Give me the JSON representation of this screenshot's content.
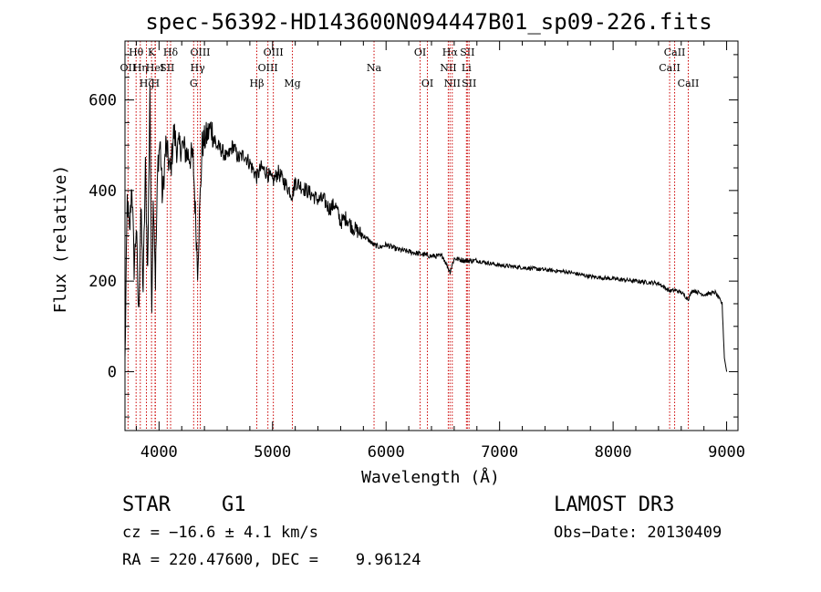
{
  "chart_data": {
    "type": "line",
    "title": "spec-56392-HD143600N094447B01_sp09-226.fits",
    "xlabel": "Wavelength (Å)",
    "ylabel": "Flux (relative)",
    "xlim": [
      3700,
      9100
    ],
    "ylim": [
      -130,
      730
    ],
    "xticks": [
      4000,
      5000,
      6000,
      7000,
      8000,
      9000
    ],
    "yticks": [
      0,
      200,
      400,
      600
    ],
    "series": [
      {
        "name": "flux",
        "x": [
          3700,
          3720,
          3740,
          3760,
          3780,
          3800,
          3820,
          3840,
          3860,
          3880,
          3900,
          3920,
          3934,
          3950,
          3968,
          3990,
          4010,
          4030,
          4060,
          4101,
          4130,
          4160,
          4200,
          4250,
          4300,
          4340,
          4380,
          4420,
          4460,
          4500,
          4550,
          4600,
          4650,
          4700,
          4750,
          4800,
          4861,
          4900,
          4950,
          5000,
          5050,
          5100,
          5150,
          5175,
          5200,
          5250,
          5300,
          5350,
          5400,
          5450,
          5500,
          5550,
          5600,
          5650,
          5700,
          5750,
          5800,
          5850,
          5890,
          5950,
          6000,
          6100,
          6200,
          6300,
          6400,
          6500,
          6563,
          6600,
          6700,
          6800,
          6900,
          7000,
          7200,
          7400,
          7600,
          7800,
          8000,
          8200,
          8400,
          8498,
          8542,
          8600,
          8662,
          8700,
          8800,
          8900,
          8960,
          8980,
          9000
        ],
        "y": [
          20,
          380,
          300,
          420,
          230,
          320,
          120,
          360,
          180,
          450,
          220,
          640,
          130,
          400,
          200,
          460,
          510,
          380,
          500,
          440,
          530,
          490,
          500,
          480,
          470,
          230,
          500,
          520,
          540,
          500,
          490,
          470,
          500,
          470,
          480,
          460,
          430,
          450,
          440,
          420,
          440,
          420,
          400,
          390,
          420,
          410,
          400,
          390,
          380,
          380,
          360,
          370,
          330,
          340,
          320,
          310,
          300,
          290,
          280,
          275,
          280,
          270,
          265,
          260,
          255,
          255,
          220,
          250,
          245,
          245,
          240,
          235,
          230,
          225,
          220,
          210,
          205,
          200,
          195,
          178,
          180,
          175,
          160,
          180,
          170,
          175,
          150,
          30,
          0
        ]
      }
    ],
    "lines": [
      {
        "name": "OII",
        "lambda": 3727,
        "tier": 1
      },
      {
        "name": "Hθ",
        "lambda": 3798,
        "tier": 0
      },
      {
        "name": "Hη",
        "lambda": 3835,
        "tier": 1
      },
      {
        "name": "Hζ",
        "lambda": 3889,
        "tier": 2
      },
      {
        "name": "K",
        "lambda": 3934,
        "tier": 0
      },
      {
        "name": "HeI",
        "lambda": 3965,
        "tier": 1
      },
      {
        "name": "H",
        "lambda": 3968,
        "tier": 2
      },
      {
        "name": "SII",
        "lambda": 4072,
        "tier": 1
      },
      {
        "name": "Hδ",
        "lambda": 4102,
        "tier": 0
      },
      {
        "name": "G",
        "lambda": 4305,
        "tier": 2
      },
      {
        "name": "Hγ",
        "lambda": 4340,
        "tier": 1
      },
      {
        "name": "OIII",
        "lambda": 4363,
        "tier": 0
      },
      {
        "name": "Hβ",
        "lambda": 4861,
        "tier": 2
      },
      {
        "name": "OIII",
        "lambda": 4959,
        "tier": 1
      },
      {
        "name": "OIII",
        "lambda": 5007,
        "tier": 0
      },
      {
        "name": "Mg",
        "lambda": 5175,
        "tier": 2
      },
      {
        "name": "Na",
        "lambda": 5894,
        "tier": 1
      },
      {
        "name": "OI",
        "lambda": 6300,
        "tier": 0
      },
      {
        "name": "OI",
        "lambda": 6364,
        "tier": 2
      },
      {
        "name": "NII",
        "lambda": 6548,
        "tier": 1
      },
      {
        "name": "Hα",
        "lambda": 6563,
        "tier": 0
      },
      {
        "name": "NII",
        "lambda": 6583,
        "tier": 2
      },
      {
        "name": "SII",
        "lambda": 6716,
        "tier": 0
      },
      {
        "name": "Li",
        "lambda": 6708,
        "tier": 1
      },
      {
        "name": "SII",
        "lambda": 6731,
        "tier": 2
      },
      {
        "name": "CaII",
        "lambda": 8498,
        "tier": 1
      },
      {
        "name": "CaII",
        "lambda": 8542,
        "tier": 0
      },
      {
        "name": "CaII",
        "lambda": 8662,
        "tier": 2
      }
    ]
  },
  "info": {
    "class_label": "STAR",
    "subclass": "G1",
    "survey": "LAMOST DR3",
    "cz": "cz = −16.6 ± 4.1 km/s",
    "obs_date": "Obs−Date: 20130409",
    "coords": "RA = 220.47600, DEC =    9.96124"
  },
  "colors": {
    "line_marker": "#cc0000",
    "spectrum": "#000000"
  }
}
